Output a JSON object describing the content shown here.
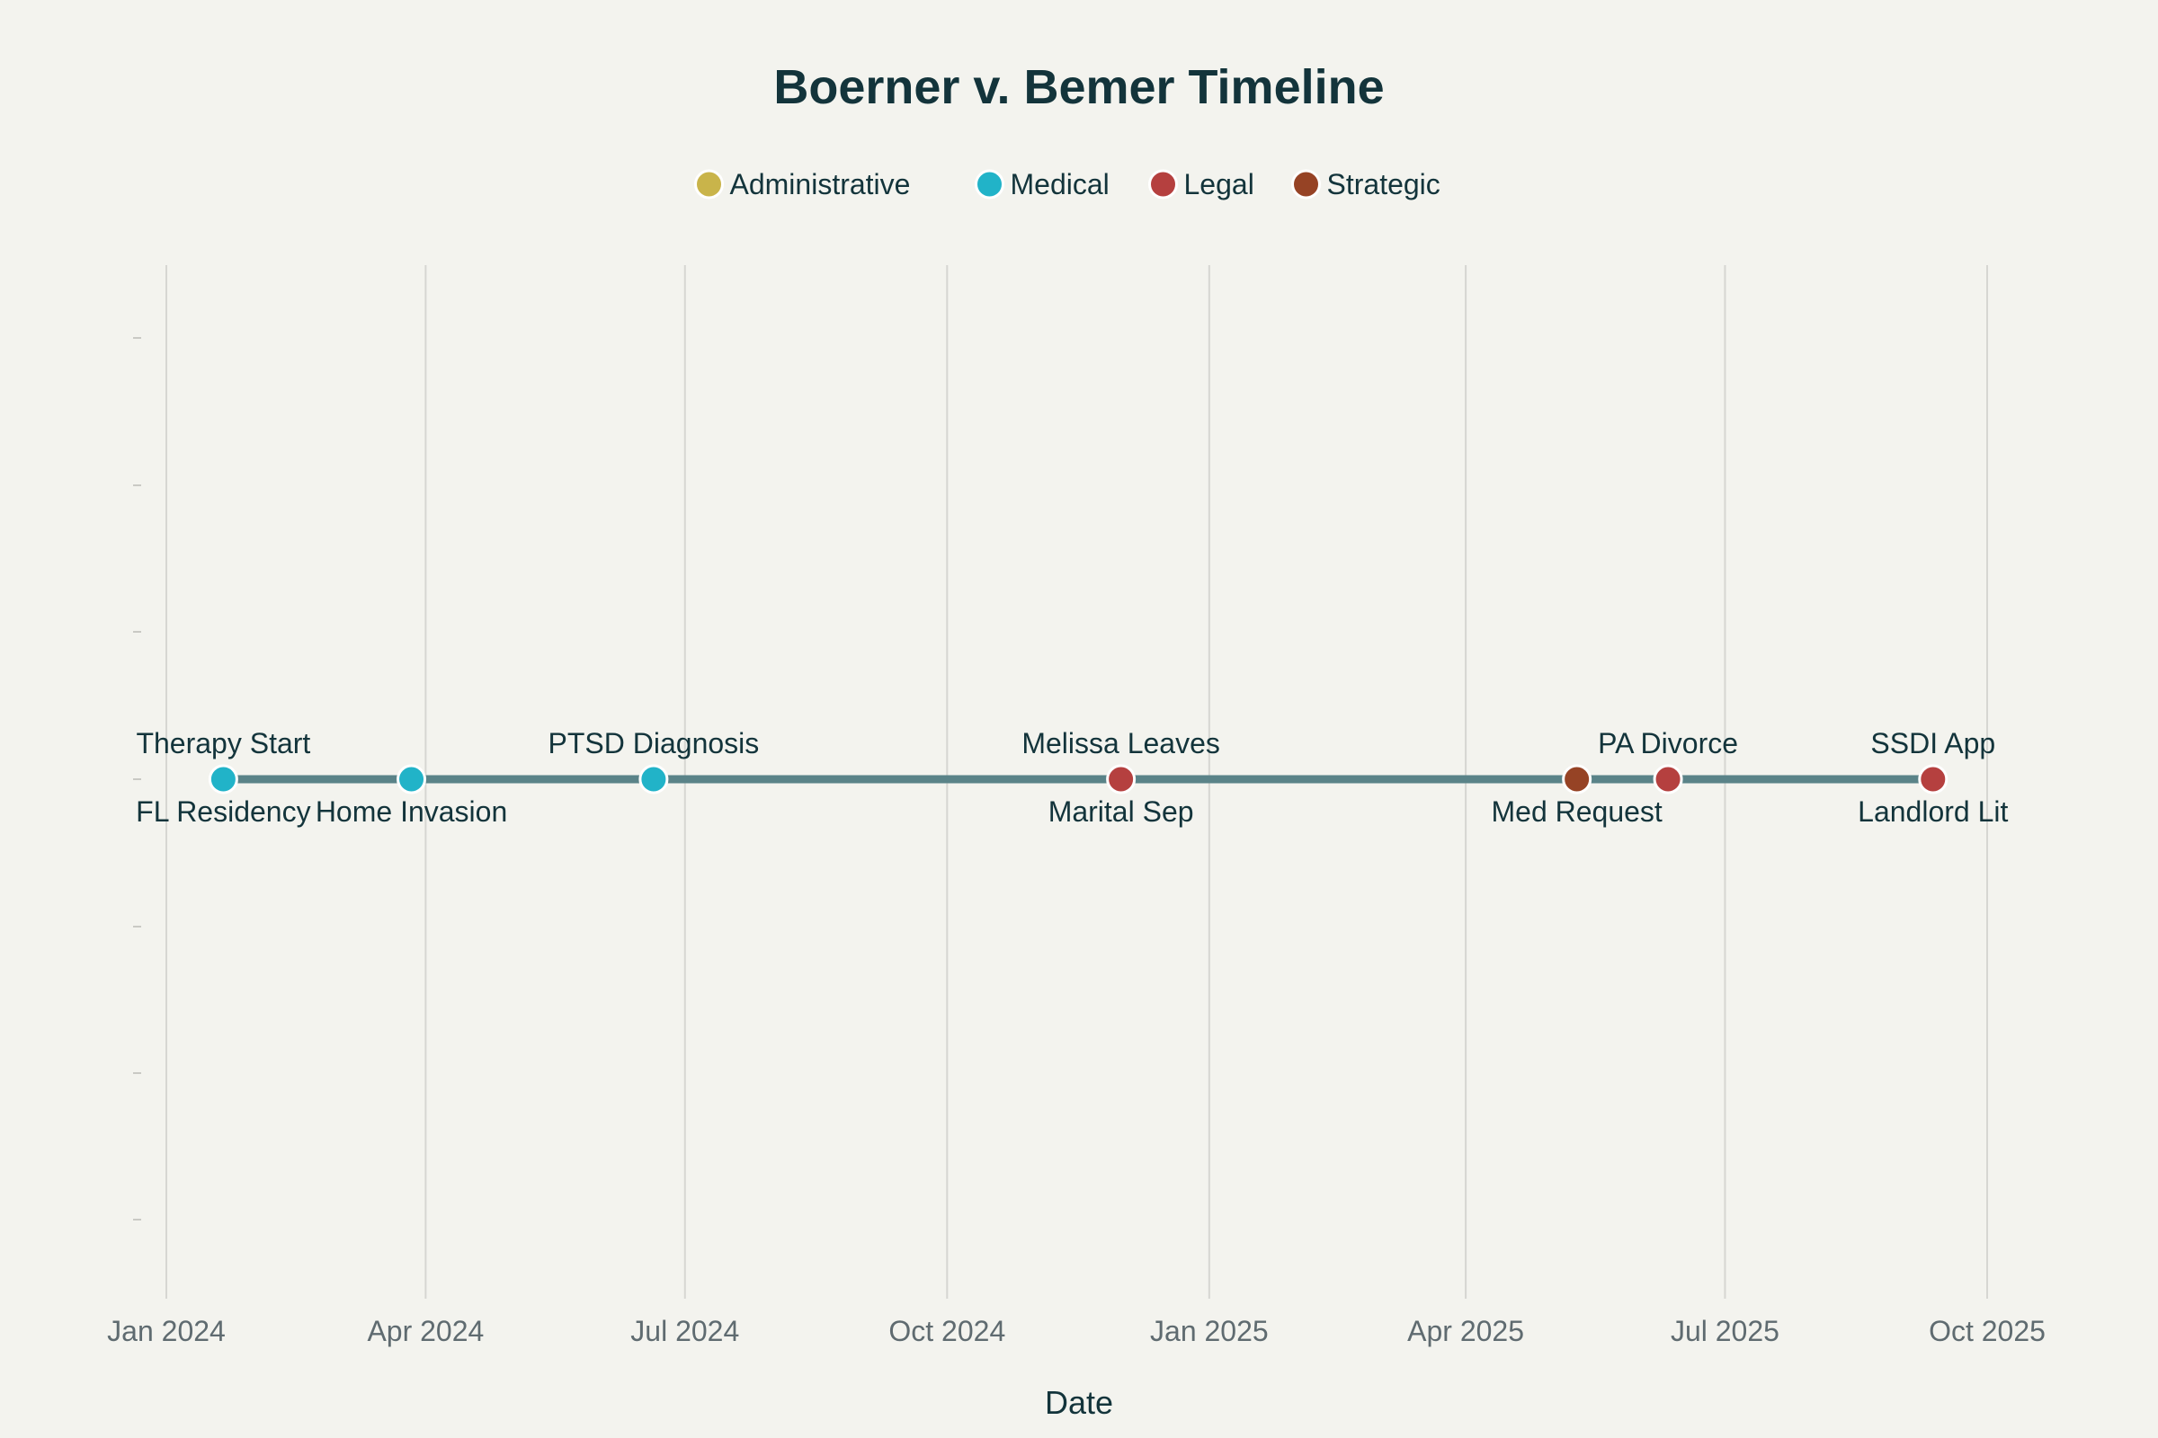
{
  "chart_data": {
    "type": "scatter",
    "title": "Boerner v. Bemer Timeline",
    "xlabel": "Date",
    "ylabel": "",
    "xlim": [
      "2024-01-01",
      "2025-10-01"
    ],
    "x_ticks": [
      "2024-01-01",
      "2024-04-01",
      "2024-07-01",
      "2024-10-01",
      "2025-01-01",
      "2025-04-01",
      "2025-07-01",
      "2025-10-01"
    ],
    "x_tick_labels": [
      "Jan 2024",
      "Apr 2024",
      "Jul 2024",
      "Oct 2024",
      "Jan 2025",
      "Apr 2025",
      "Jul 2025",
      "Oct 2025"
    ],
    "legend": {
      "placement": "top-center",
      "entries": [
        {
          "name": "Administrative",
          "color": "#c9b44a"
        },
        {
          "name": "Medical",
          "color": "#21b3c8"
        },
        {
          "name": "Legal",
          "color": "#b5403f"
        },
        {
          "name": "Strategic",
          "color": "#964325"
        }
      ]
    },
    "grid": "x-only",
    "line_color": "#5a8388",
    "events": [
      {
        "date": "2024-01-21",
        "labels": [
          "Therapy Start",
          "FL Residency"
        ],
        "category": "Medical",
        "color": "#21b3c8"
      },
      {
        "date": "2024-03-27",
        "labels": [
          "Home Invasion"
        ],
        "category": "Medical",
        "color": "#21b3c8",
        "label_pos": "below"
      },
      {
        "date": "2024-06-20",
        "labels": [
          "PTSD Diagnosis"
        ],
        "category": "Medical",
        "color": "#21b3c8",
        "label_pos": "above"
      },
      {
        "date": "2024-12-01",
        "labels": [
          "Melissa Leaves",
          "Marital Sep"
        ],
        "category": "Legal",
        "color": "#b5403f"
      },
      {
        "date": "2025-05-10",
        "labels": [
          "Med Request"
        ],
        "category": "Strategic",
        "color": "#964325",
        "label_pos": "below"
      },
      {
        "date": "2025-06-11",
        "labels": [
          "PA Divorce"
        ],
        "category": "Legal",
        "color": "#b5403f",
        "label_pos": "above"
      },
      {
        "date": "2025-09-12",
        "labels": [
          "SSDI App",
          "Landlord Lit"
        ],
        "category": "Legal",
        "color": "#b5403f"
      }
    ]
  }
}
